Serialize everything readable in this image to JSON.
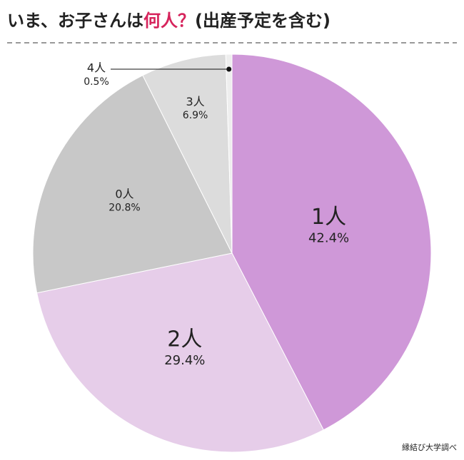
{
  "chart_data": {
    "type": "pie",
    "title": [
      {
        "text": "いま、お子さんは",
        "color": "#222222"
      },
      {
        "text": "何人？",
        "color": "#d6245c"
      },
      {
        "text": "(出産予定を含む)",
        "color": "#222222"
      }
    ],
    "categories": [
      "1人",
      "2人",
      "0人",
      "3人",
      "4人"
    ],
    "values": [
      42.4,
      29.4,
      20.8,
      6.9,
      0.5
    ],
    "value_labels": [
      "42.4%",
      "29.4%",
      "20.8%",
      "6.9%",
      "0.5%"
    ],
    "colors": [
      "#cf98d8",
      "#e6cde9",
      "#c8c8c8",
      "#dcdcdc",
      "#eeeeee"
    ],
    "source": "縁結び大学調べ"
  }
}
